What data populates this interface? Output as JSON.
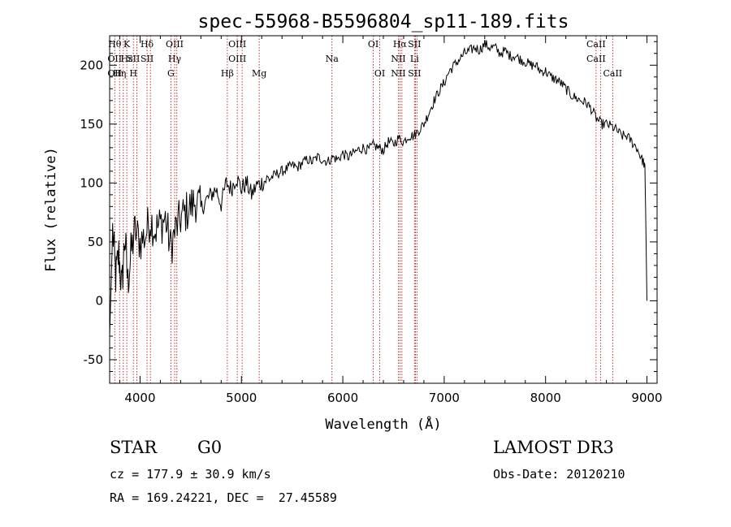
{
  "chart_data": {
    "type": "line",
    "title": "spec-55968-B5596804_sp11-189.fits",
    "xlabel": "Wavelength (Å)",
    "ylabel": "Flux (relative)",
    "xlim": [
      3700,
      9100
    ],
    "ylim": [
      -70,
      225
    ],
    "xticks": [
      4000,
      5000,
      6000,
      7000,
      8000,
      9000
    ],
    "yticks": [
      -50,
      0,
      50,
      100,
      150,
      200
    ],
    "grid": false,
    "series": [
      {
        "name": "flux",
        "x": [
          3700,
          3730,
          3760,
          3790,
          3820,
          3850,
          3880,
          3910,
          3950,
          4000,
          4050,
          4100,
          4150,
          4200,
          4250,
          4300,
          4350,
          4400,
          4450,
          4500,
          4550,
          4600,
          4650,
          4700,
          4750,
          4800,
          4850,
          4900,
          4950,
          5000,
          5050,
          5100,
          5150,
          5200,
          5250,
          5300,
          5350,
          5400,
          5450,
          5500,
          5550,
          5600,
          5650,
          5700,
          5750,
          5800,
          5850,
          5900,
          5950,
          6000,
          6050,
          6100,
          6150,
          6200,
          6250,
          6300,
          6350,
          6400,
          6450,
          6500,
          6550,
          6600,
          6650,
          6700,
          6750,
          6800,
          6850,
          6900,
          6950,
          7000,
          7050,
          7100,
          7150,
          7200,
          7250,
          7300,
          7350,
          7400,
          7450,
          7500,
          7550,
          7600,
          7650,
          7700,
          7750,
          7800,
          7850,
          7900,
          7950,
          8000,
          8050,
          8100,
          8150,
          8200,
          8250,
          8300,
          8350,
          8400,
          8450,
          8500,
          8550,
          8600,
          8650,
          8700,
          8750,
          8800,
          8850,
          8900,
          8950,
          8980,
          9000
        ],
        "y": [
          -30,
          60,
          20,
          40,
          10,
          55,
          15,
          40,
          60,
          50,
          55,
          70,
          60,
          65,
          70,
          45,
          60,
          70,
          75,
          80,
          85,
          78,
          85,
          90,
          95,
          82,
          100,
          95,
          105,
          95,
          100,
          90,
          98,
          100,
          103,
          105,
          108,
          110,
          112,
          115,
          113,
          117,
          120,
          118,
          122,
          120,
          118,
          122,
          120,
          125,
          122,
          125,
          128,
          130,
          128,
          132,
          130,
          128,
          135,
          133,
          138,
          135,
          140,
          140,
          145,
          150,
          160,
          170,
          178,
          185,
          195,
          200,
          205,
          210,
          212,
          215,
          213,
          218,
          215,
          215,
          210,
          212,
          208,
          208,
          205,
          203,
          200,
          200,
          195,
          195,
          190,
          188,
          185,
          180,
          175,
          172,
          170,
          168,
          163,
          155,
          150,
          150,
          148,
          145,
          140,
          140,
          135,
          130,
          120,
          115,
          0
        ]
      }
    ],
    "lines": [
      {
        "x": 3750,
        "labels": [
          "Hθ",
          "OII",
          "OII"
        ]
      },
      {
        "x": 3798,
        "labels": [
          "",
          "",
          "Hη"
        ]
      },
      {
        "x": 3835,
        "labels": [
          "",
          "",
          ""
        ]
      },
      {
        "x": 3869,
        "labels": [
          "K",
          "Hε",
          ""
        ]
      },
      {
        "x": 3934,
        "labels": [
          "",
          "SII",
          "H"
        ]
      },
      {
        "x": 3969,
        "labels": [
          "",
          "",
          ""
        ]
      },
      {
        "x": 4069,
        "labels": [
          "Hδ",
          "SII",
          ""
        ]
      },
      {
        "x": 4102,
        "labels": [
          "",
          "",
          ""
        ]
      },
      {
        "x": 4304,
        "labels": [
          "",
          "",
          "G"
        ]
      },
      {
        "x": 4341,
        "labels": [
          "OIII",
          "Hγ",
          ""
        ]
      },
      {
        "x": 4363,
        "labels": [
          "",
          "",
          ""
        ]
      },
      {
        "x": 4861,
        "labels": [
          "",
          "",
          "Hβ"
        ]
      },
      {
        "x": 4959,
        "labels": [
          "OIII",
          "OIII",
          ""
        ]
      },
      {
        "x": 5007,
        "labels": [
          "",
          "",
          ""
        ]
      },
      {
        "x": 5175,
        "labels": [
          "",
          "",
          "Mg"
        ]
      },
      {
        "x": 5893,
        "labels": [
          "",
          "Na",
          ""
        ]
      },
      {
        "x": 6300,
        "labels": [
          "OI",
          "",
          ""
        ]
      },
      {
        "x": 6364,
        "labels": [
          "",
          "",
          "OI"
        ]
      },
      {
        "x": 6548,
        "labels": [
          "",
          "NII",
          "NII"
        ]
      },
      {
        "x": 6563,
        "labels": [
          "Hα",
          "",
          ""
        ]
      },
      {
        "x": 6583,
        "labels": [
          "",
          "",
          ""
        ]
      },
      {
        "x": 6707,
        "labels": [
          "SII",
          "Li",
          "SII"
        ]
      },
      {
        "x": 6716,
        "labels": [
          "",
          "",
          ""
        ]
      },
      {
        "x": 6731,
        "labels": [
          "",
          "",
          ""
        ]
      },
      {
        "x": 8498,
        "labels": [
          "CaII",
          "CaII",
          ""
        ]
      },
      {
        "x": 8542,
        "labels": [
          "",
          "",
          ""
        ]
      },
      {
        "x": 8662,
        "labels": [
          "",
          "",
          "CaII"
        ]
      }
    ]
  },
  "info": {
    "class_label": "STAR",
    "subclass": "G0",
    "survey": "LAMOST DR3",
    "redshift_line": "cz = 177.9 ± 30.9 km/s",
    "obs_date_line": "Obs-Date: 20120210",
    "coords_line": "RA = 169.24221, DEC =  27.45589"
  }
}
